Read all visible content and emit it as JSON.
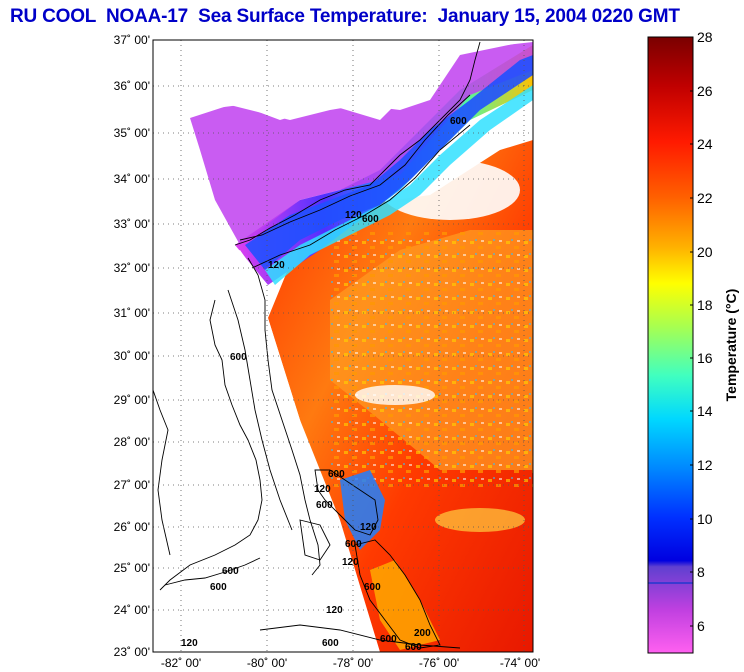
{
  "title": "RU COOL  NOAA-17  Sea Surface Temperature:  January 15, 2004 0220 GMT",
  "map": {
    "lat_labels": [
      "37˚ 00'",
      "36˚ 00'",
      "35˚ 00'",
      "34˚ 00'",
      "33˚ 00'",
      "32˚ 00'",
      "31˚ 00'",
      "30˚ 00'",
      "29˚ 00'",
      "28˚ 00'",
      "27˚ 00'",
      "26˚ 00'",
      "25˚ 00'",
      "24˚ 00'",
      "23˚ 00'"
    ],
    "lon_labels": [
      "-82˚ 00'",
      "-80˚ 00'",
      "-78˚ 00'",
      "-76˚ 00'",
      "-74˚ 00'"
    ],
    "contour_labels": [
      "120",
      "600",
      "600",
      "120",
      "600",
      "600",
      "600",
      "600",
      "120",
      "600",
      "600",
      "600",
      "120",
      "120",
      "120",
      "600",
      "600",
      "600",
      "200",
      "120"
    ]
  },
  "colorbar": {
    "label": "Temperature (°C)",
    "ticks": [
      "28",
      "26",
      "24",
      "22",
      "20",
      "18",
      "16",
      "14",
      "12",
      "10",
      "8",
      "6"
    ],
    "colors": {
      "t28": "#800000",
      "t26": "#e00000",
      "t24": "#ff4000",
      "t22": "#ff9000",
      "t20": "#ffff00",
      "t18": "#b0ff40",
      "t16": "#40ffb0",
      "t14": "#00e0ff",
      "t12": "#0090ff",
      "t10": "#0030ff",
      "t8": "#0000e0",
      "t7": "#a040e0",
      "t5": "#ff40e0"
    }
  }
}
